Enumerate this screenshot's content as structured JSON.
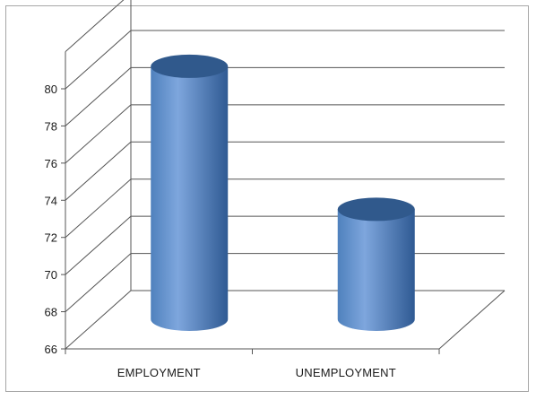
{
  "chart_data": {
    "type": "bar",
    "style": "3d-cylinder",
    "categories": [
      "EMPLOYMENT",
      "UNEMPLOYMENT"
    ],
    "values": [
      80.1,
      72.4
    ],
    "ylim": [
      66,
      80
    ],
    "yticks": [
      "66",
      "68",
      "70",
      "72",
      "74",
      "76",
      "78",
      "80"
    ],
    "title": "",
    "xlabel": "",
    "ylabel": "",
    "grid": true,
    "legend": "none",
    "colors": {
      "bar_light": "#7ea6dd",
      "bar_mid": "#4f81bd",
      "bar_dark": "#2f5a93",
      "top_dark": "#30598c",
      "grid": "#555555"
    }
  }
}
